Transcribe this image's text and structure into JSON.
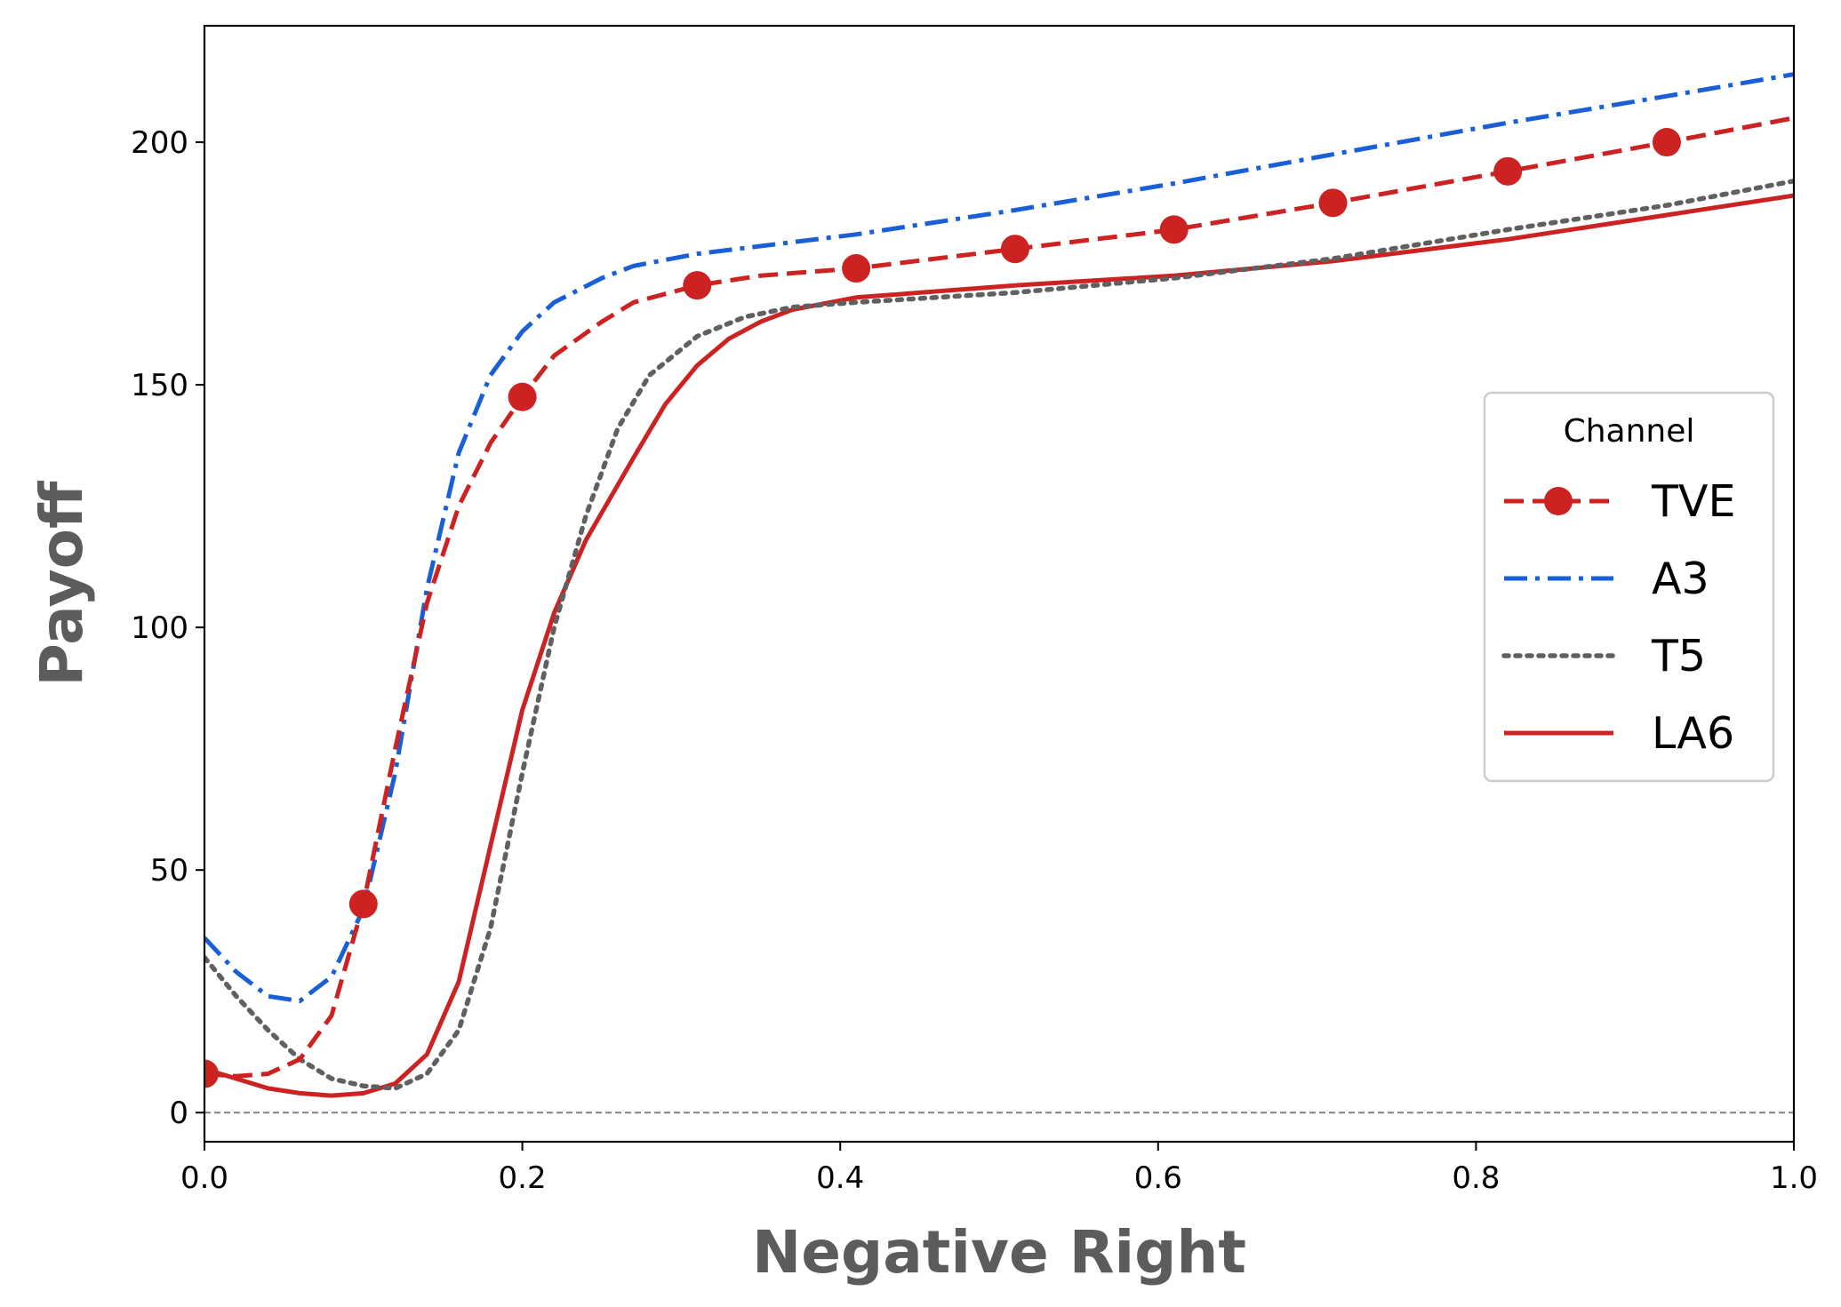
{
  "chart_data": {
    "type": "line",
    "title": "",
    "xlabel": "Negative Right",
    "ylabel": "Payoff",
    "xlim": [
      0.0,
      1.0
    ],
    "ylim": [
      -6,
      224
    ],
    "xticks": [
      "0.0",
      "0.2",
      "0.4",
      "0.6",
      "0.8",
      "1.0"
    ],
    "xtick_values": [
      0.0,
      0.2,
      0.4,
      0.6,
      0.8,
      1.0
    ],
    "yticks": [
      "0",
      "50",
      "100",
      "150",
      "200"
    ],
    "ytick_values": [
      0,
      50,
      100,
      150,
      200
    ],
    "grid": false,
    "zero_line": true,
    "legend": {
      "title": "Channel",
      "placement": "center-right"
    },
    "series": [
      {
        "name": "TVE",
        "color": "#cc2222",
        "style": "dashed",
        "marker": "circle",
        "points": [
          [
            0.0,
            8
          ],
          [
            0.02,
            7.5
          ],
          [
            0.04,
            8
          ],
          [
            0.06,
            11
          ],
          [
            0.08,
            20
          ],
          [
            0.1,
            43
          ],
          [
            0.12,
            75
          ],
          [
            0.14,
            105
          ],
          [
            0.16,
            125
          ],
          [
            0.18,
            138
          ],
          [
            0.2,
            147.5
          ],
          [
            0.22,
            156
          ],
          [
            0.25,
            163
          ],
          [
            0.27,
            167
          ],
          [
            0.31,
            170.5
          ],
          [
            0.35,
            172.5
          ],
          [
            0.41,
            174
          ],
          [
            0.51,
            178
          ],
          [
            0.61,
            182
          ],
          [
            0.71,
            187.5
          ],
          [
            0.82,
            194
          ],
          [
            0.92,
            200
          ],
          [
            1.0,
            205
          ]
        ],
        "marker_points": [
          [
            0.0,
            8
          ],
          [
            0.1,
            43
          ],
          [
            0.2,
            147.5
          ],
          [
            0.31,
            170.5
          ],
          [
            0.41,
            174
          ],
          [
            0.51,
            178
          ],
          [
            0.61,
            182
          ],
          [
            0.71,
            187.5
          ],
          [
            0.82,
            194
          ],
          [
            0.92,
            200
          ]
        ]
      },
      {
        "name": "A3",
        "color": "#1a5fd6",
        "style": "dashdot",
        "points": [
          [
            0.0,
            36
          ],
          [
            0.02,
            29
          ],
          [
            0.04,
            24
          ],
          [
            0.06,
            23
          ],
          [
            0.08,
            28
          ],
          [
            0.1,
            42
          ],
          [
            0.12,
            70
          ],
          [
            0.14,
            108
          ],
          [
            0.16,
            136
          ],
          [
            0.18,
            152
          ],
          [
            0.2,
            161
          ],
          [
            0.22,
            167
          ],
          [
            0.25,
            172
          ],
          [
            0.27,
            174.5
          ],
          [
            0.31,
            177
          ],
          [
            0.41,
            181
          ],
          [
            0.51,
            186
          ],
          [
            0.61,
            191.5
          ],
          [
            0.71,
            197.5
          ],
          [
            0.82,
            204
          ],
          [
            0.92,
            209.5
          ],
          [
            1.0,
            214
          ]
        ]
      },
      {
        "name": "T5",
        "color": "#606060",
        "style": "dotted",
        "points": [
          [
            0.0,
            32
          ],
          [
            0.02,
            24
          ],
          [
            0.04,
            17
          ],
          [
            0.06,
            11
          ],
          [
            0.08,
            7
          ],
          [
            0.1,
            5.5
          ],
          [
            0.12,
            5
          ],
          [
            0.14,
            8
          ],
          [
            0.16,
            17
          ],
          [
            0.18,
            38
          ],
          [
            0.2,
            70
          ],
          [
            0.22,
            100
          ],
          [
            0.24,
            123
          ],
          [
            0.26,
            141
          ],
          [
            0.28,
            152
          ],
          [
            0.31,
            160
          ],
          [
            0.34,
            164
          ],
          [
            0.37,
            166
          ],
          [
            0.41,
            167
          ],
          [
            0.51,
            169
          ],
          [
            0.61,
            172
          ],
          [
            0.71,
            176
          ],
          [
            0.82,
            182
          ],
          [
            0.92,
            187
          ],
          [
            1.0,
            192
          ]
        ]
      },
      {
        "name": "LA6",
        "color": "#cc2222",
        "style": "solid",
        "points": [
          [
            0.0,
            9
          ],
          [
            0.02,
            7
          ],
          [
            0.04,
            5
          ],
          [
            0.06,
            4
          ],
          [
            0.08,
            3.5
          ],
          [
            0.1,
            4
          ],
          [
            0.12,
            6
          ],
          [
            0.14,
            12
          ],
          [
            0.16,
            27
          ],
          [
            0.18,
            55
          ],
          [
            0.2,
            83
          ],
          [
            0.22,
            103
          ],
          [
            0.24,
            118
          ],
          [
            0.27,
            135
          ],
          [
            0.29,
            146
          ],
          [
            0.31,
            154
          ],
          [
            0.33,
            159.5
          ],
          [
            0.35,
            163
          ],
          [
            0.37,
            165.5
          ],
          [
            0.41,
            168
          ],
          [
            0.51,
            170.5
          ],
          [
            0.61,
            172.5
          ],
          [
            0.71,
            175.5
          ],
          [
            0.82,
            180
          ],
          [
            0.92,
            185
          ],
          [
            1.0,
            189
          ]
        ]
      }
    ]
  }
}
